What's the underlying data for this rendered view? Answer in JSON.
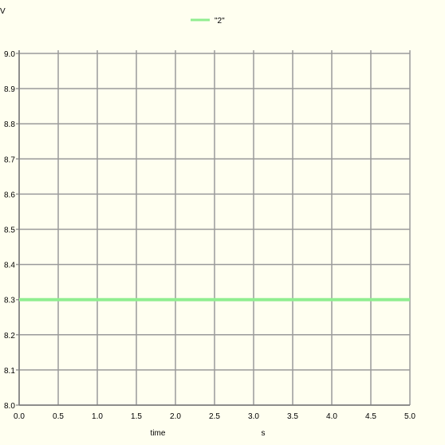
{
  "chart_data": {
    "type": "line",
    "title": "",
    "xlabel": "time",
    "xunit": "s",
    "ylabel": "V",
    "xlim": [
      0.0,
      5.0
    ],
    "ylim": [
      8.0,
      9.0
    ],
    "xticks": [
      "0.0",
      "0.5",
      "1.0",
      "1.5",
      "2.0",
      "2.5",
      "3.0",
      "3.5",
      "4.0",
      "4.5",
      "5.0"
    ],
    "yticks": [
      "8.0",
      "8.1",
      "8.2",
      "8.3",
      "8.4",
      "8.5",
      "8.6",
      "8.7",
      "8.8",
      "8.9",
      "9.0"
    ],
    "grid": true,
    "legend_position": "top-center",
    "series": [
      {
        "name": "\"2\"",
        "color": "#90ee90",
        "x": [
          0.0,
          5.0
        ],
        "y": [
          8.3,
          8.3
        ]
      }
    ]
  },
  "colors": {
    "background": "#fffff0",
    "grid": "#9a9a9a",
    "axis": "#7a7a7a"
  }
}
